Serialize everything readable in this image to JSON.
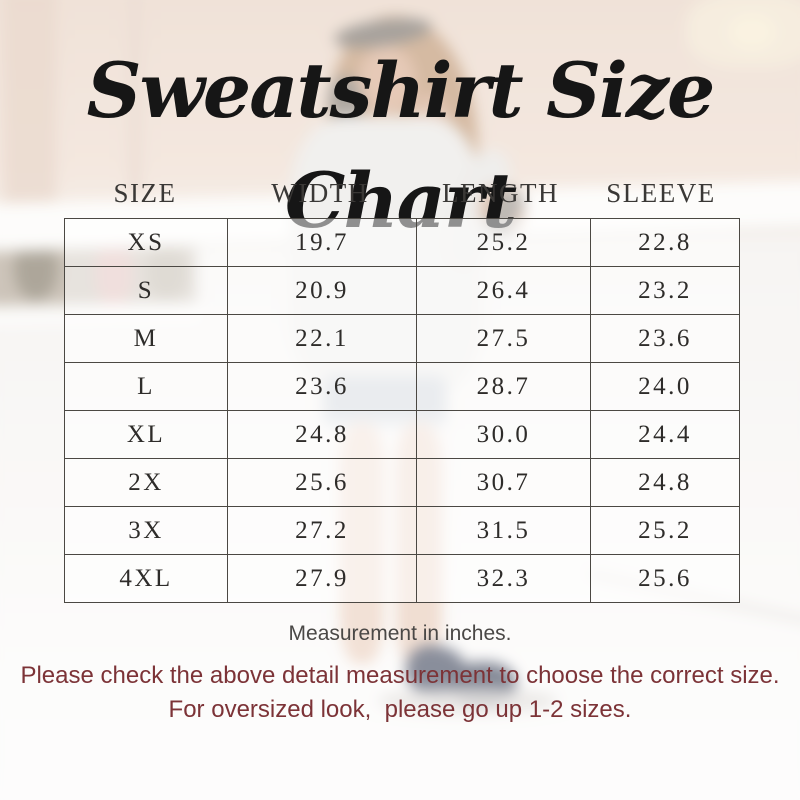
{
  "title": "Sweatshirt Size Chart",
  "chart_data": {
    "type": "table",
    "title": "Sweatshirt Size Chart",
    "columns": [
      "SIZE",
      "WIDTH",
      "LENGTH",
      "SLEEVE"
    ],
    "rows": [
      [
        "XS",
        "19.7",
        "25.2",
        "22.8"
      ],
      [
        "S",
        "20.9",
        "26.4",
        "23.2"
      ],
      [
        "M",
        "22.1",
        "27.5",
        "23.6"
      ],
      [
        "L",
        "23.6",
        "28.7",
        "24.0"
      ],
      [
        "XL",
        "24.8",
        "30.0",
        "24.4"
      ],
      [
        "2X",
        "25.6",
        "30.7",
        "24.8"
      ],
      [
        "3X",
        "27.2",
        "31.5",
        "25.2"
      ],
      [
        "4XL",
        "27.9",
        "32.3",
        "25.6"
      ]
    ]
  },
  "notes": {
    "measurement": "Measurement in inches.",
    "advice_line1": "Please check the above detail measurement to choose the correct size.",
    "advice_line2": "For oversized look,  please go up 1-2 sizes."
  },
  "colors": {
    "accent_red": "#7C3337",
    "table_border": "#4B4843",
    "table_text": "#2E2C2A",
    "header_text": "#3A3836",
    "background_beige": "#ECD9CB"
  }
}
